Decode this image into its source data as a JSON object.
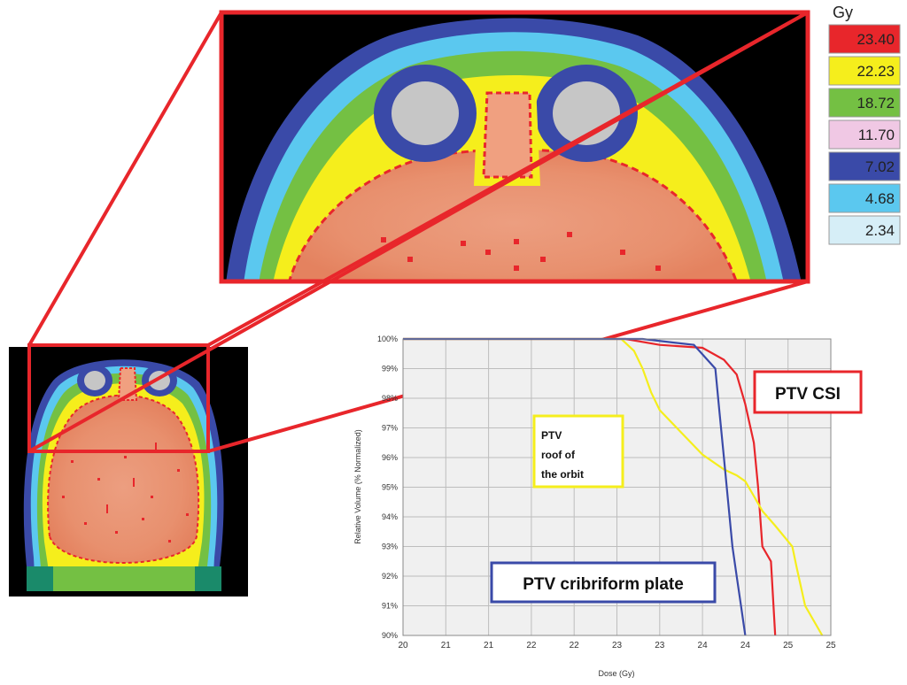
{
  "legend": {
    "unit": "Gy",
    "levels": [
      {
        "value": "23.40",
        "color": "#e8262b"
      },
      {
        "value": "22.23",
        "color": "#f5ee1c"
      },
      {
        "value": "18.72",
        "color": "#74c043"
      },
      {
        "value": "11.70",
        "color": "#f0c8e4"
      },
      {
        "value": "7.02",
        "color": "#3a4aa8"
      },
      {
        "value": "4.68",
        "color": "#5bc8ef"
      },
      {
        "value": "2.34",
        "color": "#d6eef7"
      }
    ]
  },
  "annotations": {
    "ptv_csi": "PTV CSI",
    "ptv_orbit_lines": [
      "PTV",
      "roof of",
      "the orbit"
    ],
    "ptv_cribriform": "PTV cribriform plate"
  },
  "colors": {
    "zoom_frame": "#e8262b",
    "ptv_csi": "#e8262b",
    "ptv_orbit": "#f5ee1c",
    "ptv_cribriform": "#3a4aa8"
  },
  "chart_data": {
    "type": "line",
    "xlabel": "Dose (Gy)",
    "ylabel": "Relative Volume (% Normalized)",
    "x_tick_labels": [
      "20",
      "21",
      "21",
      "22",
      "22",
      "23",
      "23",
      "24",
      "24",
      "25",
      "25"
    ],
    "y_tick_labels": [
      "100%",
      "99%",
      "98%",
      "97%",
      "96%",
      "95%",
      "94%",
      "93%",
      "92%",
      "91%",
      "90%"
    ],
    "xlim": [
      20,
      25
    ],
    "ylim": [
      90,
      100
    ],
    "grid": true,
    "series": [
      {
        "name": "PTV CSI",
        "color": "#e8262b",
        "x": [
          20,
          22.6,
          23.0,
          23.5,
          23.75,
          23.9,
          24.0,
          24.1,
          24.15,
          24.2,
          24.3,
          24.35
        ],
        "y": [
          100,
          100,
          99.8,
          99.7,
          99.3,
          98.8,
          97.8,
          96.5,
          95.0,
          93.0,
          92.5,
          90.0
        ]
      },
      {
        "name": "PTV roof of the orbit",
        "color": "#f5ee1c",
        "x": [
          20,
          22.55,
          22.7,
          22.8,
          22.9,
          23.0,
          23.2,
          23.5,
          23.75,
          23.9,
          24.0,
          24.1,
          24.2,
          24.35,
          24.55,
          24.6,
          24.7,
          24.9
        ],
        "y": [
          100,
          100,
          99.6,
          99.0,
          98.2,
          97.6,
          97.0,
          96.1,
          95.6,
          95.4,
          95.2,
          94.7,
          94.2,
          93.7,
          93.0,
          92.3,
          91.0,
          90.0
        ]
      },
      {
        "name": "PTV cribriform plate",
        "color": "#3a4aa8",
        "x": [
          20,
          22.8,
          23.4,
          23.65,
          23.7,
          23.75,
          23.8,
          23.85,
          23.9,
          23.95,
          24.0
        ],
        "y": [
          100,
          100,
          99.8,
          99.0,
          97.5,
          96.0,
          94.5,
          93.0,
          92.0,
          91.0,
          90.0
        ]
      }
    ]
  }
}
